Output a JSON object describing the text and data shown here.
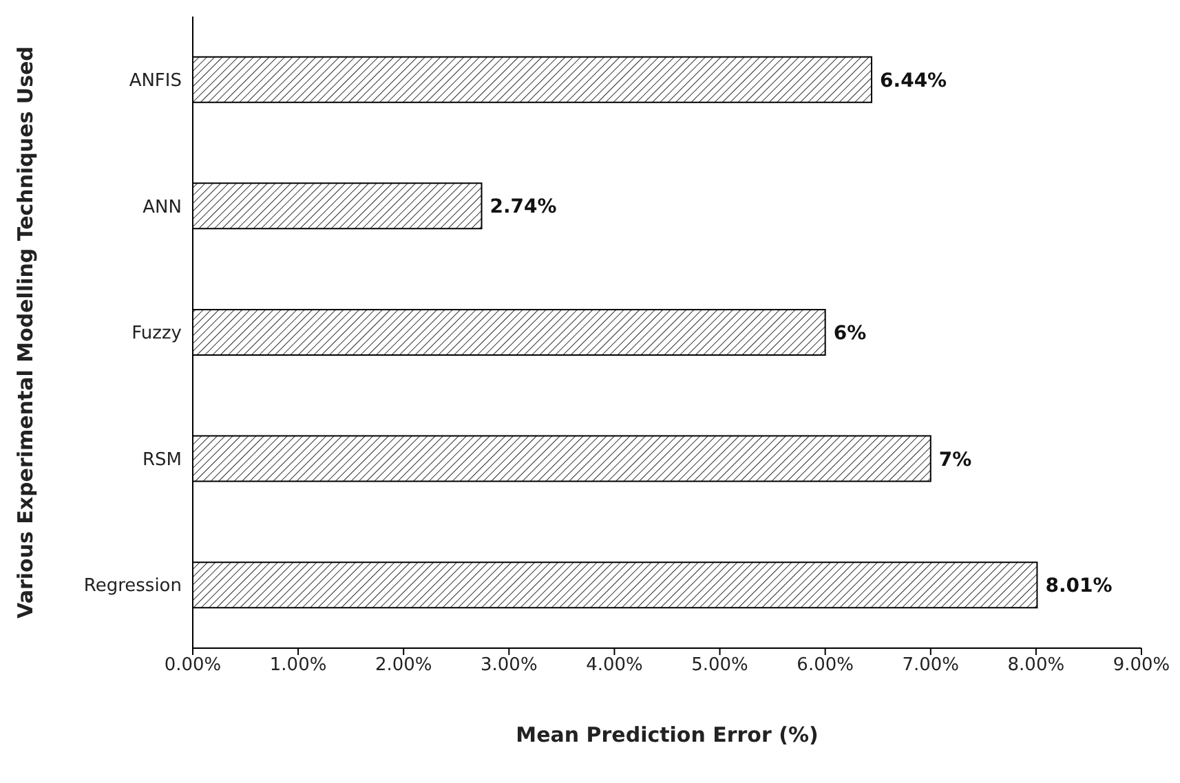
{
  "chart_data": {
    "type": "bar",
    "orientation": "horizontal",
    "xlabel": "Mean Prediction Error (%)",
    "ylabel": "Various Experimental Modelling Techniques Used",
    "categories": [
      "ANFIS",
      "ANN",
      "Fuzzy",
      "RSM",
      "Regression"
    ],
    "values": [
      6.44,
      2.74,
      6,
      7,
      8.01
    ],
    "value_labels": [
      "6.44%",
      "2.74%",
      "6%",
      "7%",
      "8.01%"
    ],
    "color": "#000000",
    "xlim": [
      0,
      9
    ],
    "xticks": [
      {
        "value": 0,
        "label": "0.00%"
      },
      {
        "value": 1,
        "label": "1.00%"
      },
      {
        "value": 2,
        "label": "2.00%"
      },
      {
        "value": 3,
        "label": "3.00%"
      },
      {
        "value": 4,
        "label": "4.00%"
      },
      {
        "value": 5,
        "label": "5.00%"
      },
      {
        "value": 6,
        "label": "6.00%"
      },
      {
        "value": 7,
        "label": "7.00%"
      },
      {
        "value": 8,
        "label": "8.00%"
      },
      {
        "value": 9,
        "label": "9.00%"
      }
    ],
    "grid": false,
    "legend": false
  }
}
